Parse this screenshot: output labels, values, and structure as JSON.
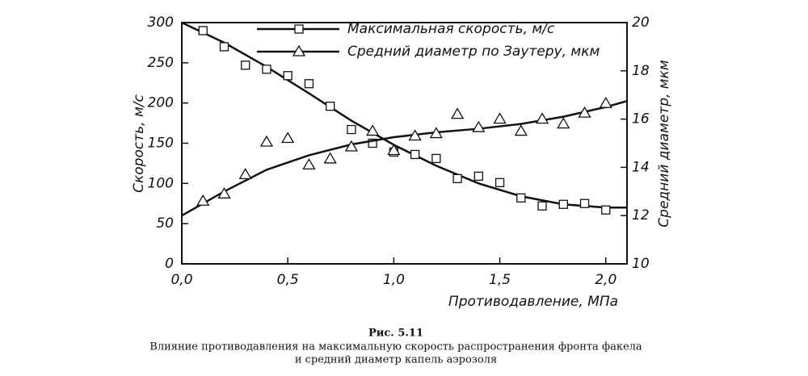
{
  "chart_data": {
    "type": "scatter-fit",
    "x": [
      0.1,
      0.2,
      0.3,
      0.4,
      0.5,
      0.6,
      0.7,
      0.8,
      0.9,
      1.0,
      1.1,
      1.2,
      1.3,
      1.4,
      1.5,
      1.6,
      1.7,
      1.8,
      1.9,
      2.0
    ],
    "series": [
      {
        "name": "Максимальная скорость, м/с",
        "marker": "square",
        "color": "#111",
        "values": [
          290,
          270,
          247,
          242,
          234,
          224,
          196,
          167,
          150,
          139,
          136,
          131,
          106,
          109,
          101,
          82,
          72,
          74,
          75,
          67
        ],
        "fit": {
          "x": [
            0,
            0.2,
            0.4,
            0.6,
            0.8,
            1.0,
            1.2,
            1.4,
            1.6,
            1.8,
            2.0,
            2.1
          ],
          "values": [
            300,
            275,
            245,
            212,
            178,
            148,
            122,
            100,
            84,
            74,
            70,
            70
          ]
        }
      },
      {
        "name": "Средний диаметр по Заутеру, мкм",
        "marker": "triangle",
        "color": "#111",
        "axis": "y2",
        "values": [
          12.6,
          12.9,
          13.7,
          15.05,
          15.2,
          14.1,
          14.35,
          14.85,
          15.5,
          14.7,
          15.3,
          15.4,
          16.2,
          15.65,
          16.0,
          15.5,
          16.0,
          15.8,
          16.25,
          16.65
        ],
        "fit": {
          "x": [
            0,
            0.2,
            0.4,
            0.6,
            0.8,
            1.0,
            1.2,
            1.4,
            1.6,
            1.8,
            2.0,
            2.1
          ],
          "values": [
            12.0,
            13.0,
            13.9,
            14.5,
            14.95,
            15.25,
            15.45,
            15.6,
            15.8,
            16.1,
            16.5,
            16.75
          ]
        }
      }
    ],
    "xlim": [
      0,
      2.1
    ],
    "xticks": [
      {
        "value": 0,
        "label": "0,0"
      },
      {
        "value": 0.5,
        "label": "0,5"
      },
      {
        "value": 1.0,
        "label": "1,0"
      },
      {
        "value": 1.5,
        "label": "1,5"
      },
      {
        "value": 2.0,
        "label": "2,0"
      }
    ],
    "ylim": [
      0,
      300
    ],
    "yticks": [
      0,
      50,
      100,
      150,
      200,
      250,
      300
    ],
    "y2lim": [
      10,
      20
    ],
    "y2ticks": [
      10,
      12,
      14,
      16,
      18,
      20
    ],
    "xlabel": "Противодавление, МПа",
    "ylabel": "Скорость, м/с",
    "y2label": "Средний диаметр, мкм",
    "caption": {
      "number": "Рис. 5.11",
      "lines": [
        "Влияние противодавления на максимальную скорость распространения фронта факела",
        "и средний диаметр капель аэрозоля"
      ]
    }
  }
}
